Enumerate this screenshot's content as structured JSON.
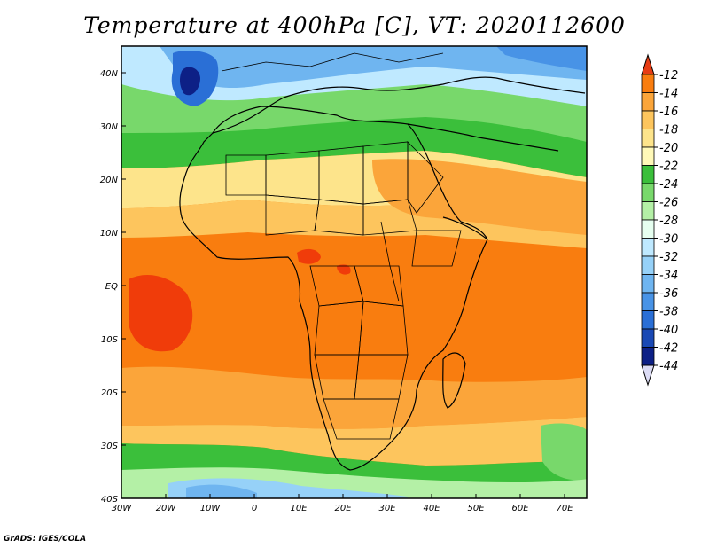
{
  "title": "Temperature at 400hPa [C], VT: 2020112600",
  "credit": "GrADS: IGES/COLA",
  "map": {
    "lon_labels": [
      "30W",
      "20W",
      "10W",
      "0",
      "10E",
      "20E",
      "30E",
      "40E",
      "50E",
      "60E",
      "70E"
    ],
    "lat_labels": [
      "40N",
      "30N",
      "20N",
      "10N",
      "EQ",
      "10S",
      "20S",
      "30S",
      "40S"
    ],
    "lon_range": [
      -30,
      75
    ],
    "lat_range": [
      -40,
      45
    ]
  },
  "colorbar": {
    "labels": [
      "-12",
      "-14",
      "-16",
      "-18",
      "-20",
      "-22",
      "-24",
      "-26",
      "-28",
      "-30",
      "-32",
      "-34",
      "-36",
      "-38",
      "-40",
      "-42",
      "-44"
    ],
    "colors": [
      "#f03c0a",
      "#f97d0f",
      "#fba53a",
      "#fdc55d",
      "#fde48b",
      "#fff9b8",
      "#3bbf3b",
      "#78d86b",
      "#b4f0a6",
      "#e6fff0",
      "#bfe9ff",
      "#96d1f8",
      "#6fb5f0",
      "#4893e6",
      "#2a6fd6",
      "#1a49b4",
      "#0d2086"
    ],
    "top_arrow_color": "#e63c14",
    "bottom_arrow_color": "#dcdcf5"
  }
}
